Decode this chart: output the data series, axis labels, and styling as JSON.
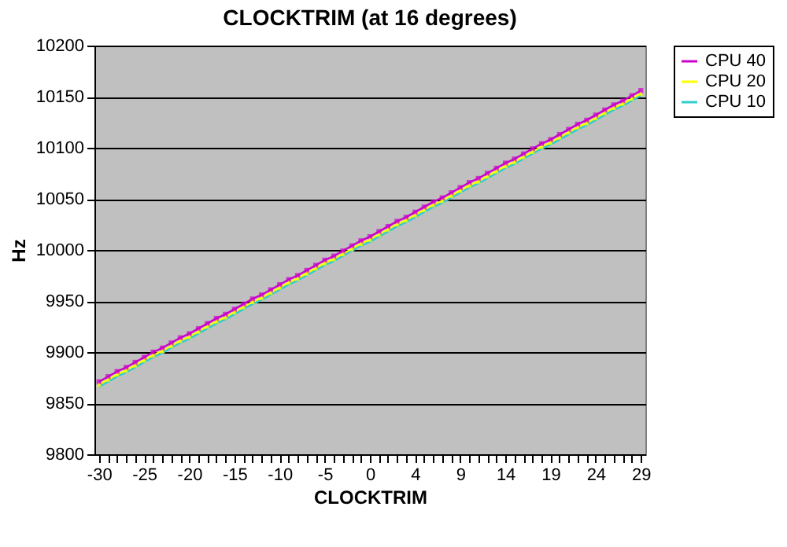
{
  "chart_data": {
    "type": "line",
    "title": "CLOCKTRIM (at 16 degrees)",
    "xlabel": "CLOCKTRIM",
    "ylabel": "Hz",
    "categories": [
      "-30",
      null,
      null,
      null,
      null,
      "-25",
      null,
      null,
      null,
      null,
      "-20",
      null,
      null,
      null,
      null,
      "-15",
      null,
      null,
      null,
      null,
      "-10",
      null,
      null,
      null,
      null,
      "-5",
      null,
      null,
      null,
      null,
      "0",
      null,
      null,
      null,
      null,
      "4",
      null,
      null,
      null,
      null,
      "9",
      null,
      null,
      null,
      null,
      "14",
      null,
      null,
      null,
      null,
      "19",
      null,
      null,
      null,
      null,
      "24",
      null,
      null,
      null,
      null,
      "29"
    ],
    "series": [
      {
        "name": "CPU 40",
        "color": "#cc00cc",
        "marker": "square",
        "values": [
          9871,
          9876,
          9881,
          9885,
          9890,
          9895,
          9900,
          9904,
          9909,
          9914,
          9918,
          9923,
          9928,
          9933,
          9937,
          9942,
          9947,
          9952,
          9956,
          9961,
          9966,
          9971,
          9975,
          9980,
          9985,
          9990,
          9994,
          9999,
          10004,
          10009,
          10013,
          10018,
          10023,
          10028,
          10032,
          10037,
          10042,
          10047,
          10051,
          10056,
          10061,
          10066,
          10070,
          10075,
          10080,
          10085,
          10089,
          10094,
          10099,
          10104,
          10108,
          10113,
          10118,
          10123,
          10127,
          10132,
          10137,
          10142,
          10146,
          10151,
          10156
        ]
      },
      {
        "name": "CPU 20",
        "color": "#ffff00",
        "marker": "triangle",
        "values": [
          9868,
          9873,
          9878,
          9882,
          9887,
          9892,
          9897,
          9901,
          9906,
          9911,
          9915,
          9920,
          9925,
          9930,
          9934,
          9939,
          9944,
          9949,
          9953,
          9958,
          9963,
          9968,
          9972,
          9977,
          9982,
          9987,
          9991,
          9996,
          10001,
          10006,
          10010,
          10015,
          10020,
          10025,
          10029,
          10034,
          10039,
          10044,
          10048,
          10053,
          10058,
          10063,
          10067,
          10072,
          10077,
          10082,
          10086,
          10091,
          10096,
          10101,
          10105,
          10110,
          10115,
          10120,
          10124,
          10129,
          10134,
          10139,
          10143,
          10148,
          10153
        ]
      },
      {
        "name": "CPU 10",
        "color": "#33cccc",
        "marker": "none",
        "values": [
          9866,
          9871,
          9876,
          9880,
          9885,
          9890,
          9895,
          9899,
          9904,
          9909,
          9913,
          9918,
          9923,
          9928,
          9932,
          9937,
          9942,
          9947,
          9951,
          9956,
          9961,
          9966,
          9970,
          9975,
          9980,
          9985,
          9989,
          9994,
          9999,
          10004,
          10008,
          10013,
          10018,
          10023,
          10027,
          10032,
          10037,
          10042,
          10046,
          10051,
          10056,
          10061,
          10065,
          10070,
          10075,
          10080,
          10084,
          10089,
          10094,
          10099,
          10103,
          10108,
          10113,
          10118,
          10122,
          10127,
          10132,
          10137,
          10141,
          10146,
          10151
        ]
      }
    ],
    "ylim": [
      9800,
      10200
    ],
    "yticks": [
      9800,
      9850,
      9900,
      9950,
      10000,
      10050,
      10100,
      10150,
      10200
    ],
    "grid": "y",
    "legend": "right",
    "line_style": "solid"
  }
}
